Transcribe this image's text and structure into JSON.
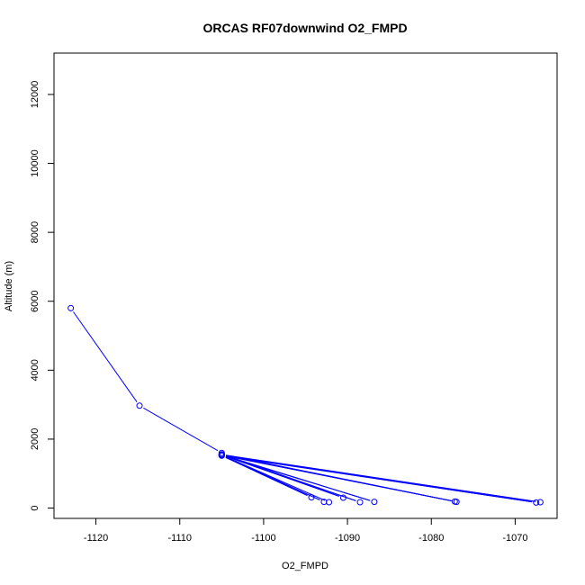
{
  "chart_data": {
    "type": "line",
    "title": "ORCAS RF07downwind O2_FMPD",
    "xlabel": "O2_FMPD",
    "ylabel": "Altitude (m)",
    "xlim": [
      -1125,
      -1065
    ],
    "ylim": [
      -300,
      13200
    ],
    "xticks": [
      -1120,
      -1110,
      -1100,
      -1090,
      -1080,
      -1070
    ],
    "yticks": [
      0,
      2000,
      4000,
      6000,
      8000,
      10000,
      12000
    ],
    "grid": false,
    "line_color": "#0000ff",
    "series": [
      {
        "values": [
          {
            "x": -1123.0,
            "y": 5800
          },
          {
            "x": -1114.8,
            "y": 2970
          },
          {
            "x": -1105.0,
            "y": 1600
          },
          {
            "x": -1105.0,
            "y": 1520
          },
          {
            "x": -1067.5,
            "y": 160
          },
          {
            "x": -1105.0,
            "y": 1530
          },
          {
            "x": -1077.2,
            "y": 190
          },
          {
            "x": -1105.0,
            "y": 1540
          },
          {
            "x": -1067.0,
            "y": 170
          },
          {
            "x": -1105.0,
            "y": 1550
          },
          {
            "x": -1077.0,
            "y": 180
          },
          {
            "x": -1105.0,
            "y": 1560
          },
          {
            "x": -1088.5,
            "y": 170
          },
          {
            "x": -1105.0,
            "y": 1540
          },
          {
            "x": -1090.5,
            "y": 300
          },
          {
            "x": -1105.0,
            "y": 1550
          },
          {
            "x": -1086.8,
            "y": 180
          },
          {
            "x": -1105.0,
            "y": 1530
          },
          {
            "x": -1094.3,
            "y": 310
          },
          {
            "x": -1105.0,
            "y": 1520
          },
          {
            "x": -1092.8,
            "y": 180
          },
          {
            "x": -1105.0,
            "y": 1540
          },
          {
            "x": -1092.2,
            "y": 170
          }
        ]
      }
    ]
  }
}
